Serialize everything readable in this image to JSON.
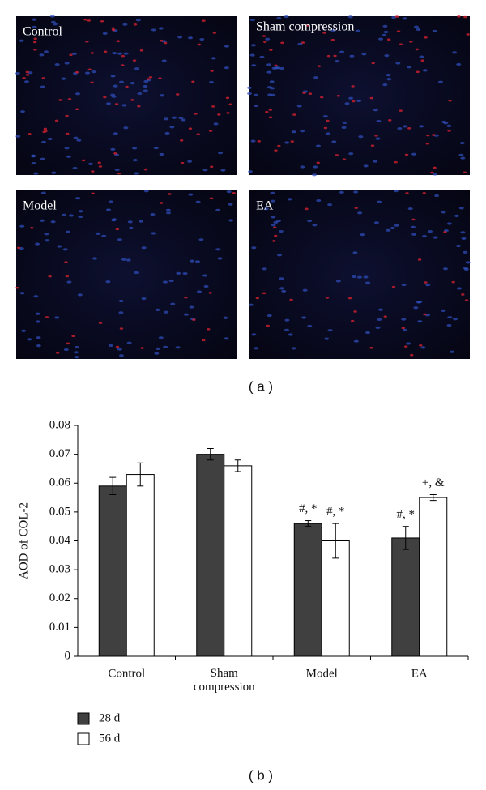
{
  "panels": [
    {
      "label": "Control"
    },
    {
      "label": "Sham compression"
    },
    {
      "label": "Model"
    },
    {
      "label": "EA"
    }
  ],
  "caption_a": "( a )",
  "caption_b": "( b )",
  "chart_data": {
    "type": "bar",
    "y_label": "AOD of COL-2",
    "categories": [
      "Control",
      "Sham compression",
      "Model",
      "EA"
    ],
    "series": [
      {
        "name": "28 d",
        "color": "#404040",
        "values": [
          0.059,
          0.07,
          0.046,
          0.041
        ],
        "errors": [
          0.003,
          0.002,
          0.001,
          0.004
        ],
        "annotations": [
          null,
          null,
          "#, *",
          "#, *"
        ]
      },
      {
        "name": "56 d",
        "color": "#ffffff",
        "values": [
          0.063,
          0.066,
          0.04,
          0.055
        ],
        "errors": [
          0.004,
          0.002,
          0.006,
          0.001
        ],
        "annotations": [
          null,
          null,
          "#, *",
          "+, &"
        ]
      }
    ],
    "ylim": [
      0,
      0.08
    ],
    "yticks": [
      0,
      0.01,
      0.02,
      0.03,
      0.04,
      0.05,
      0.06,
      0.07,
      0.08
    ],
    "grid": false
  }
}
